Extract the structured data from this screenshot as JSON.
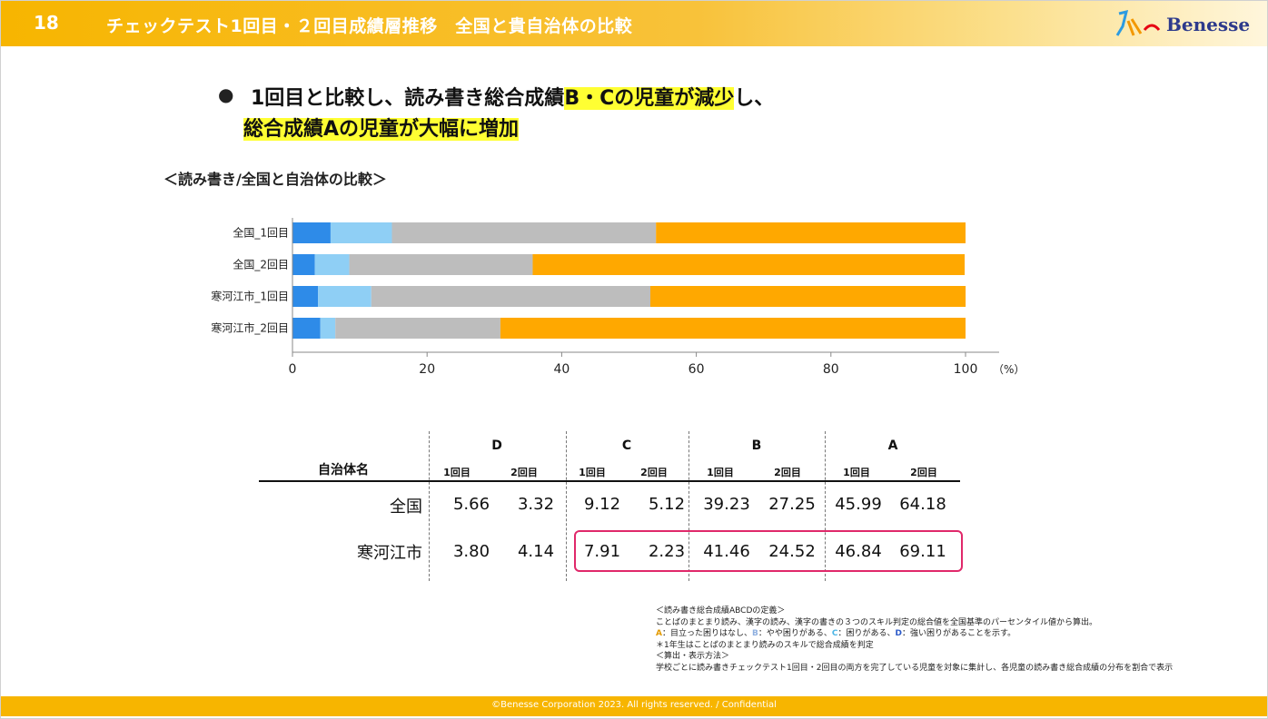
{
  "header": {
    "slide_number": "18",
    "title": "チェックテスト1回目・２回目成績層推移　全国と貴自治体の比較",
    "logo_text": "Benesse"
  },
  "headline": {
    "bullet": "●",
    "line1_pre": "1回目と比較し、読み書き総合成績",
    "line1_hl": "B・Cの児童が減少",
    "line1_post": "し、",
    "line2_hl": "総合成績Aの児童が大幅に増加"
  },
  "chart_data": {
    "type": "bar",
    "orientation": "horizontal-stacked",
    "title": "＜読み書き/全国と自治体の比較＞",
    "categories": [
      "全国_1回目",
      "全国_2回目",
      "寒河江市_1回目",
      "寒河江市_2回目"
    ],
    "series": [
      {
        "name": "D",
        "color": "#2e8be8",
        "values": [
          5.66,
          3.32,
          3.8,
          4.14
        ]
      },
      {
        "name": "C",
        "color": "#8fcff5",
        "values": [
          9.12,
          5.12,
          7.91,
          2.23
        ]
      },
      {
        "name": "B",
        "color": "#bdbdbd",
        "values": [
          39.23,
          27.25,
          41.46,
          24.52
        ]
      },
      {
        "name": "A",
        "color": "#ffa800",
        "values": [
          45.99,
          64.18,
          46.84,
          69.11
        ]
      }
    ],
    "xlim": [
      0,
      100
    ],
    "ticks": [
      "0",
      "20",
      "40",
      "60",
      "80",
      "100"
    ],
    "unit_label": "（%）"
  },
  "table": {
    "row_header": "自治体名",
    "groups": [
      "D",
      "C",
      "B",
      "A"
    ],
    "sub_headers": [
      "1回目",
      "2回目"
    ],
    "rows": [
      {
        "name": "全国",
        "values": [
          "5.66",
          "3.32",
          "9.12",
          "5.12",
          "39.23",
          "27.25",
          "45.99",
          "64.18"
        ]
      },
      {
        "name": "寒河江市",
        "values": [
          "3.80",
          "4.14",
          "7.91",
          "2.23",
          "41.46",
          "24.52",
          "46.84",
          "69.11"
        ]
      }
    ]
  },
  "notes": {
    "line1": "＜読み書き総合成績ABCDの定義＞",
    "line2": "ことばのまとまり読み、漢字の読み、漢字の書きの３つのスキル判定の総合値を全国基準のパーセンタイル値から算出。",
    "a_label": "A",
    "a_text": "：目立った困りはなし、",
    "b_label": "B",
    "b_text": "：やや困りがある、",
    "c_label": "C",
    "c_text": "：困りがある、",
    "d_label": "D",
    "d_text": "：強い困りがあることを示す。",
    "line4": "＊1年生はことばのまとまり読みのスキルで総合成績を判定",
    "line5": "＜算出・表示方法＞",
    "line6": "学校ごとに読み書きチェックテスト1回目・2回目の両方を完了している児童を対象に集計し、各児童の読み書き総合成績の分布を割合で表示"
  },
  "footer": {
    "text": "©Benesse Corporation 2023. All rights reserved. / Confidential"
  }
}
